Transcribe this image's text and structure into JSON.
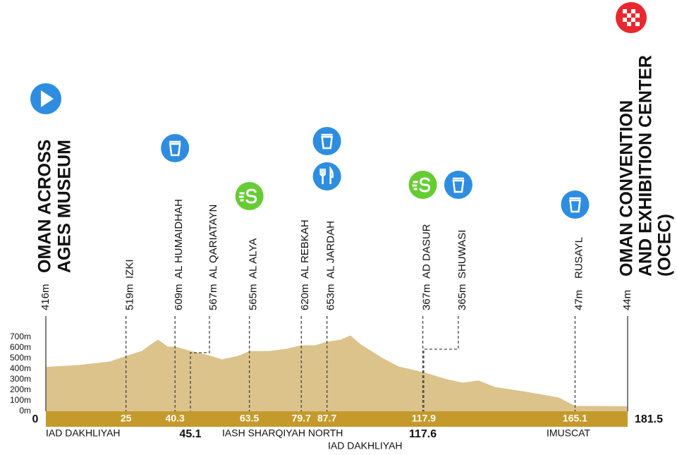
{
  "chart_data": {
    "type": "area",
    "color": "#dcc38c",
    "bar_color": "#c59a2c",
    "x": [
      0,
      10,
      20,
      25,
      30,
      33,
      35,
      38,
      40.3,
      45.1,
      50,
      55,
      60,
      63.5,
      70,
      75,
      79.7,
      84,
      87.7,
      92,
      95,
      98,
      105,
      110,
      117.6,
      117.9,
      125,
      130,
      135,
      140,
      150,
      160,
      165.1,
      170,
      181.5
    ],
    "values": [
      416,
      433,
      467,
      519,
      567,
      633,
      673,
      607,
      609,
      567,
      533,
      487,
      520,
      565,
      567,
      587,
      620,
      620,
      653,
      673,
      713,
      633,
      500,
      420,
      367,
      365,
      300,
      267,
      287,
      227,
      180,
      127,
      47,
      47,
      44
    ],
    "xlim": [
      0,
      181.5
    ],
    "ylim": [
      0,
      700
    ],
    "yticks": [
      {
        "value": 0,
        "label": "0m"
      },
      {
        "value": 100,
        "label": "100m"
      },
      {
        "value": 200,
        "label": "200m"
      },
      {
        "value": 300,
        "label": "300m"
      },
      {
        "value": 400,
        "label": "400m"
      },
      {
        "value": 500,
        "label": "500m"
      },
      {
        "value": 600,
        "label": "600m"
      },
      {
        "value": 700,
        "label": "700m"
      }
    ],
    "start": {
      "name": [
        "OMAN ACROSS",
        "AGES MUSEUM"
      ],
      "elevation": "416m"
    },
    "finish": {
      "name": [
        "OMAN CONVENTION",
        "AND EXHIBITION CENTER",
        "(OCEC)"
      ],
      "elevation": "44m"
    },
    "waypoints": [
      {
        "name": "IZKI",
        "elevation": "519m",
        "km": 25,
        "icons": []
      },
      {
        "name": "AL HUMAIDHAH",
        "elevation": "609m",
        "km": 40.3,
        "icons": [
          "feed"
        ]
      },
      {
        "name": "AL QARIATAYN",
        "elevation": "567m",
        "km": 45.1,
        "below": true,
        "icons": []
      },
      {
        "name": "AL ALYA",
        "elevation": "565m",
        "km": 63.5,
        "icons": [
          "sprint"
        ]
      },
      {
        "name": "AL REBKAH",
        "elevation": "620m",
        "km": 79.7,
        "icons": []
      },
      {
        "name": "AL JARDAH",
        "elevation": "653m",
        "km": 87.7,
        "icons": [
          "food",
          "feed"
        ]
      },
      {
        "name": "AD DASUR",
        "elevation": "367m",
        "km": 117.6,
        "below": true,
        "icons": [
          "sprint"
        ]
      },
      {
        "name": "SHUWASI",
        "elevation": "365m",
        "km": 117.9,
        "icons": [
          "feed"
        ]
      },
      {
        "name": "RUSAYL",
        "elevation": "47m",
        "km": 165.1,
        "icons": [
          "feed"
        ]
      }
    ],
    "regions": [
      "IAD DAKHLIYAH",
      "IASH SHARQIYAH NORTH",
      "IAD DAKHLIYAH",
      "IMUSCAT"
    ]
  }
}
